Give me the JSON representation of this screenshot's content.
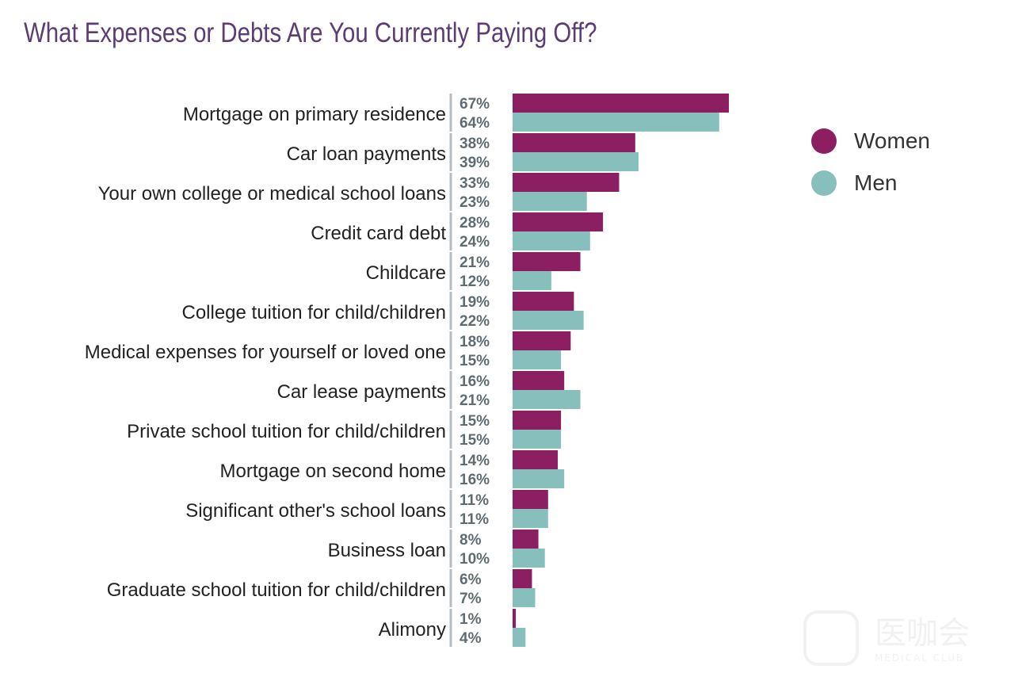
{
  "chart_data": {
    "type": "bar",
    "orientation": "horizontal",
    "title": "What Expenses or Debts Are You Currently Paying Off?",
    "categories": [
      "Mortgage on primary residence",
      "Car loan payments",
      "Your own college or medical school loans",
      "Credit card debt",
      "Childcare",
      "College tuition for child/children",
      "Medical expenses for yourself or loved one",
      "Car lease payments",
      "Private school tuition for child/children",
      "Mortgage on second home",
      "Significant other's school loans",
      "Business loan",
      "Graduate school tuition for child/children",
      "Alimony"
    ],
    "series": [
      {
        "name": "Women",
        "color": "#8b1f62",
        "values": [
          67,
          38,
          33,
          28,
          21,
          19,
          18,
          16,
          15,
          14,
          11,
          8,
          6,
          1
        ],
        "labels": [
          "67%",
          "38%",
          "33%",
          "28%",
          "21%",
          "19%",
          "18%",
          "16%",
          "15%",
          "14%",
          "11%",
          "8%",
          "6%",
          "1%"
        ]
      },
      {
        "name": "Men",
        "color": "#86bfbb",
        "values": [
          64,
          39,
          23,
          24,
          12,
          22,
          15,
          21,
          15,
          16,
          11,
          10,
          7,
          4
        ],
        "labels": [
          "64%",
          "39%",
          "23%",
          "24%",
          "12%",
          "22%",
          "15%",
          "21%",
          "15%",
          "16%",
          "11%",
          "10%",
          "7%",
          "4%"
        ]
      }
    ],
    "value_unit": "%",
    "xlim": [
      0,
      67
    ],
    "grid": false,
    "legend": {
      "position": "top-right",
      "marker": "circle"
    }
  },
  "watermark": {
    "text": "医咖会",
    "subtext": "MEDICAL CLUB",
    "icon": "logo-badge-icon"
  }
}
